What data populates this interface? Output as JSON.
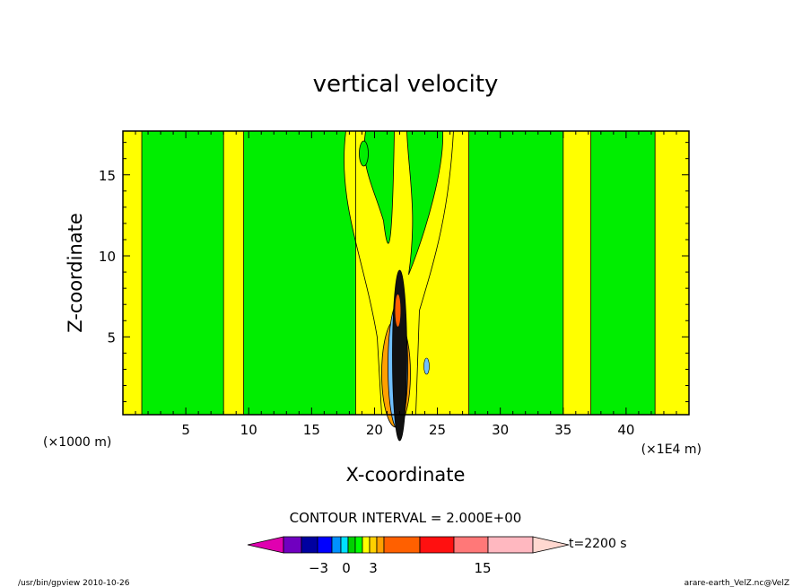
{
  "chart_data": {
    "type": "contour",
    "title": "vertical velocity",
    "xlabel": "X-coordinate",
    "ylabel": "Z-coordinate",
    "x_unit_left": "(×1000 m)",
    "x_unit_right": "(×1E4 m)",
    "xlim": [
      0,
      45
    ],
    "ylim": [
      0.2,
      17.7
    ],
    "x_ticks": [
      5,
      10,
      15,
      20,
      25,
      30,
      35,
      40
    ],
    "y_ticks": [
      5,
      10,
      15
    ],
    "contour_interval_text": "CONTOUR INTERVAL = 2.000E+00",
    "time_label": "t=2200 s",
    "colorbar": {
      "levels_labeled": [
        {
          "value": -3,
          "label": "−3"
        },
        {
          "value": 0,
          "label": "0"
        },
        {
          "value": 3,
          "label": "3"
        },
        {
          "value": 15,
          "label": "15"
        }
      ],
      "colors": [
        "#e000b0",
        "#7000c0",
        "#0000a0",
        "#0000ff",
        "#0090ff",
        "#00e0ff",
        "#00d000",
        "#00ff00",
        "#ffff00",
        "#ffd000",
        "#ffa000",
        "#ff6000",
        "#ff1010",
        "#ff7878",
        "#ffb8c0",
        "#ffd8d0"
      ]
    },
    "fill_colors": {
      "positive_band": "#ffff00",
      "near_zero": "#00ee00",
      "weak_negative": "#70c0ff"
    },
    "columns": [
      {
        "x0": 0,
        "x1": 1.5,
        "band": "positive_band"
      },
      {
        "x0": 1.5,
        "x1": 8.0,
        "band": "near_zero"
      },
      {
        "x0": 8.0,
        "x1": 9.6,
        "band": "positive_band"
      },
      {
        "x0": 9.6,
        "x1": 18.5,
        "band": "near_zero"
      },
      {
        "x0": 18.5,
        "x1": 27.5,
        "band": "positive_band"
      },
      {
        "x0": 27.5,
        "x1": 35.0,
        "band": "near_zero"
      },
      {
        "x0": 35.0,
        "x1": 37.2,
        "band": "positive_band"
      },
      {
        "x0": 37.2,
        "x1": 42.3,
        "band": "near_zero"
      },
      {
        "x0": 42.3,
        "x1": 45.0,
        "band": "positive_band"
      }
    ],
    "updraft_core_x": 22.0
  },
  "footer": {
    "left": "/usr/bin/gpview   2010-10-26",
    "right": "arare-earth_VelZ.nc@VelZ"
  }
}
